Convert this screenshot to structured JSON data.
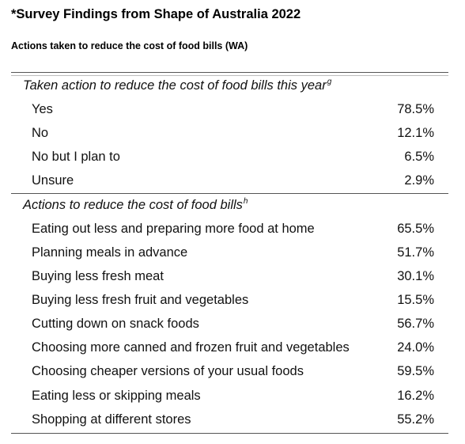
{
  "title": "*Survey Findings from Shape of Australia 2022",
  "subtitle": "Actions taken to reduce the cost of food bills (WA)",
  "sections": [
    {
      "heading": "Taken action to reduce the cost of food bills this year",
      "footnote": "g",
      "rows": [
        {
          "label": "Yes",
          "value": "78.5%"
        },
        {
          "label": "No",
          "value": "12.1%"
        },
        {
          "label": "No but I plan to",
          "value": "6.5%"
        },
        {
          "label": "Unsure",
          "value": "2.9%"
        }
      ]
    },
    {
      "heading": "Actions to reduce the cost of food bills",
      "footnote": "h",
      "rows": [
        {
          "label": "Eating out less and preparing more food at home",
          "value": "65.5%"
        },
        {
          "label": "Planning meals in advance",
          "value": "51.7%"
        },
        {
          "label": "Buying less fresh meat",
          "value": "30.1%"
        },
        {
          "label": "Buying less fresh fruit and vegetables",
          "value": "15.5%"
        },
        {
          "label": "Cutting down on snack foods",
          "value": "56.7%"
        },
        {
          "label": "Choosing more canned and frozen fruit and vegetables",
          "value": "24.0%"
        },
        {
          "label": "Choosing cheaper versions of your usual foods",
          "value": "59.5%"
        },
        {
          "label": "Eating less or skipping meals",
          "value": "16.2%"
        },
        {
          "label": "Shopping at different stores",
          "value": "55.2%"
        }
      ]
    }
  ]
}
